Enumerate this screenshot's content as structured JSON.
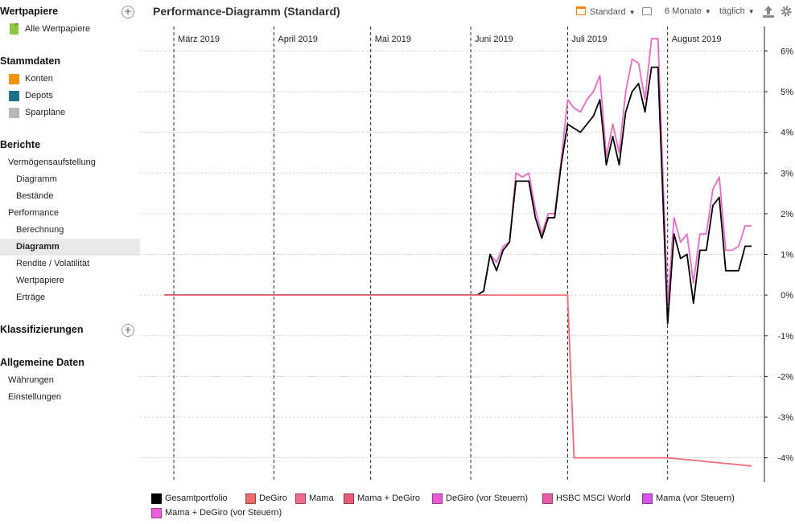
{
  "sidebar": {
    "sections": [
      {
        "title": "Wertpapiere",
        "has_add": true,
        "items": [
          {
            "label": "Alle Wertpapiere",
            "icon": "document-icon",
            "color": "#8cc63f"
          }
        ]
      },
      {
        "title": "Stammdaten",
        "has_add": false,
        "items": [
          {
            "label": "Konten",
            "icon": "account-icon",
            "color": "#f39200"
          },
          {
            "label": "Depots",
            "icon": "portfolio-icon",
            "color": "#1f6f8b"
          },
          {
            "label": "Sparpläne",
            "icon": "savings-plan-icon",
            "color": "#b8b8b8"
          }
        ]
      },
      {
        "title": "Berichte",
        "has_add": false,
        "items": [
          {
            "label": "Vermögensaufstellung",
            "level": 1
          },
          {
            "label": "Diagramm",
            "level": 2
          },
          {
            "label": "Bestände",
            "level": 2
          },
          {
            "label": "Performance",
            "level": 1
          },
          {
            "label": "Berechnung",
            "level": 2
          },
          {
            "label": "Diagramm",
            "level": 2,
            "selected": true
          },
          {
            "label": "Rendite / Volatilität",
            "level": 2
          },
          {
            "label": "Wertpapiere",
            "level": 2
          },
          {
            "label": "Erträge",
            "level": 2
          }
        ]
      },
      {
        "title": "Klassifizierungen",
        "has_add": true,
        "items": []
      },
      {
        "title": "Allgemeine Daten",
        "has_add": false,
        "items": [
          {
            "label": "Währungen",
            "level": 1
          },
          {
            "label": "Einstellungen",
            "level": 1
          }
        ]
      }
    ]
  },
  "header": {
    "title": "Performance-Diagramm (Standard)",
    "view_label": "Standard",
    "period_label": "6 Monate",
    "interval_label": "täglich"
  },
  "chart_data": {
    "type": "line",
    "x_axis": {
      "labels": [
        "März 2019",
        "April 2019",
        "Mai 2019",
        "Juni 2019",
        "Juli 2019",
        "August 2019"
      ]
    },
    "y_axis": {
      "side": "right",
      "ylim": [
        -4.6,
        6.6
      ],
      "ticks": [
        6,
        5,
        4,
        3,
        2,
        1,
        0,
        -1,
        -2,
        -3,
        -4
      ],
      "tick_labels": [
        "6%",
        "5%",
        "4%",
        "3%",
        "2%",
        "1%",
        "0%",
        "-1%",
        "-2%",
        "-3%",
        "-4%"
      ]
    },
    "grid": true,
    "series": [
      {
        "name": "Mama + DeGiro (vor Steuern)",
        "color": "#e86bc6",
        "x": [
          "2019-02-26",
          "2019-06-03",
          "2019-06-05",
          "2019-06-07",
          "2019-06-09",
          "2019-06-11",
          "2019-06-13",
          "2019-06-15",
          "2019-06-17",
          "2019-06-19",
          "2019-06-21",
          "2019-06-23",
          "2019-06-25",
          "2019-06-27",
          "2019-06-29",
          "2019-07-01",
          "2019-07-03",
          "2019-07-05",
          "2019-07-07",
          "2019-07-09",
          "2019-07-11",
          "2019-07-13",
          "2019-07-15",
          "2019-07-17",
          "2019-07-19",
          "2019-07-21",
          "2019-07-23",
          "2019-07-25",
          "2019-07-27",
          "2019-07-29",
          "2019-08-01",
          "2019-08-03",
          "2019-08-05",
          "2019-08-07",
          "2019-08-09",
          "2019-08-11",
          "2019-08-13",
          "2019-08-15",
          "2019-08-17",
          "2019-08-19",
          "2019-08-21",
          "2019-08-23",
          "2019-08-25",
          "2019-08-27"
        ],
        "values": [
          0,
          0,
          0.1,
          1.0,
          0.8,
          1.2,
          1.3,
          3.0,
          2.9,
          3.0,
          2.1,
          1.5,
          2.0,
          2.0,
          3.3,
          4.8,
          4.6,
          4.5,
          4.8,
          5.0,
          5.4,
          3.4,
          4.2,
          3.5,
          5.0,
          5.8,
          5.7,
          4.8,
          6.3,
          6.3,
          -0.2,
          1.9,
          1.3,
          1.5,
          0.3,
          1.5,
          1.5,
          2.6,
          2.9,
          1.1,
          1.1,
          1.2,
          1.7,
          1.7
        ]
      },
      {
        "name": "Gesamtportfolio",
        "color": "#000000",
        "x": [
          "2019-02-26",
          "2019-06-03",
          "2019-06-05",
          "2019-06-07",
          "2019-06-09",
          "2019-06-11",
          "2019-06-13",
          "2019-06-15",
          "2019-06-17",
          "2019-06-19",
          "2019-06-21",
          "2019-06-23",
          "2019-06-25",
          "2019-06-27",
          "2019-06-29",
          "2019-07-01",
          "2019-07-03",
          "2019-07-05",
          "2019-07-07",
          "2019-07-09",
          "2019-07-11",
          "2019-07-13",
          "2019-07-15",
          "2019-07-17",
          "2019-07-19",
          "2019-07-21",
          "2019-07-23",
          "2019-07-25",
          "2019-07-27",
          "2019-07-29",
          "2019-08-01",
          "2019-08-03",
          "2019-08-05",
          "2019-08-07",
          "2019-08-09",
          "2019-08-11",
          "2019-08-13",
          "2019-08-15",
          "2019-08-17",
          "2019-08-19",
          "2019-08-21",
          "2019-08-23",
          "2019-08-25",
          "2019-08-27"
        ],
        "values": [
          0,
          0,
          0.1,
          1.0,
          0.6,
          1.1,
          1.3,
          2.8,
          2.8,
          2.8,
          1.9,
          1.4,
          1.9,
          1.9,
          3.2,
          4.2,
          4.1,
          4.0,
          4.2,
          4.4,
          4.8,
          3.2,
          3.9,
          3.2,
          4.5,
          5.0,
          5.2,
          4.5,
          5.6,
          5.6,
          -0.7,
          1.5,
          0.9,
          1.0,
          -0.2,
          1.1,
          1.1,
          2.2,
          2.4,
          0.6,
          0.6,
          0.6,
          1.2,
          1.2
        ]
      },
      {
        "name": "DeGiro",
        "color": "#f06a7a",
        "x": [
          "2019-02-26",
          "2019-07-01",
          "2019-07-03",
          "2019-08-01",
          "2019-08-27"
        ],
        "values": [
          0,
          0,
          -4.0,
          -4.0,
          -4.2
        ]
      }
    ],
    "legend": {
      "position": "bottom",
      "entries": [
        {
          "name": "Gesamtportfolio",
          "color": "#000000"
        },
        {
          "name": "DeGiro",
          "color": "#f06a6a"
        },
        {
          "name": "Mama",
          "color": "#f06a8c"
        },
        {
          "name": "Mama + DeGiro",
          "color": "#e85c7a"
        },
        {
          "name": "DeGiro (vor Steuern)",
          "color": "#e859d4"
        },
        {
          "name": "HSBC MSCI World",
          "color": "#e85aa6"
        },
        {
          "name": "Mama (vor Steuern)",
          "color": "#d553e8"
        },
        {
          "name": "Mama + DeGiro (vor Steuern)",
          "color": "#ee5ed8"
        }
      ]
    }
  }
}
